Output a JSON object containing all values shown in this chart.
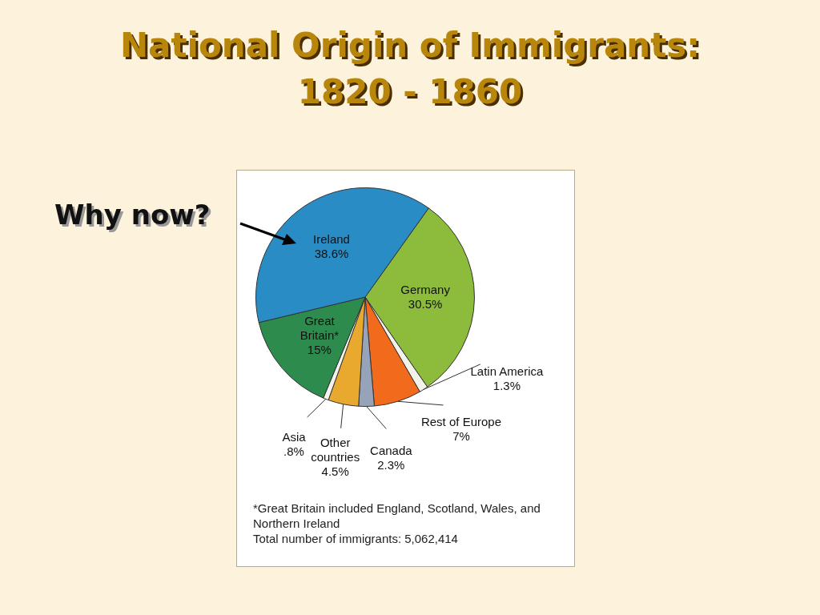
{
  "chart_data": {
    "type": "pie",
    "title": "National Origin of Immigrants: 1820 - 1860",
    "categories": [
      "Germany",
      "Latin America",
      "Rest of Europe",
      "Canada",
      "Other countries",
      "Asia",
      "Great Britain*",
      "Ireland"
    ],
    "values": [
      30.5,
      1.3,
      7,
      2.3,
      4.5,
      0.8,
      15,
      38.6
    ],
    "value_labels": [
      "30.5%",
      "1.3%",
      "7%",
      "2.3%",
      "4.5%",
      ".8%",
      "15%",
      "38.6%"
    ],
    "colors": [
      "#8dbb3c",
      "#f2f2ea",
      "#f26a1c",
      "#97a3b8",
      "#e8a92e",
      "#f2f2ea",
      "#2e8b4e",
      "#2a8cc4"
    ],
    "annotations": [
      "Why now?",
      "*Great Britain included England, Scotland, Wales, and Northern Ireland",
      "Total number of immigrants: 5,062,414"
    ],
    "legend": false
  }
}
